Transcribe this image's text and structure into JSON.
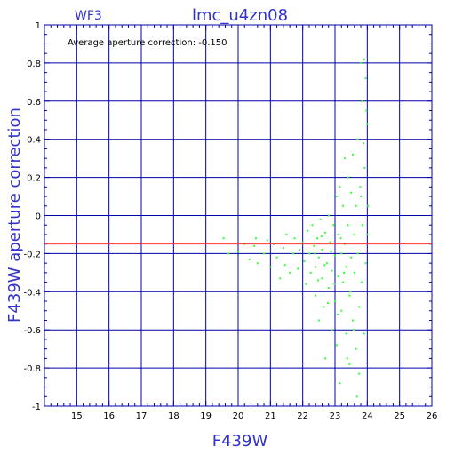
{
  "chart_data": {
    "type": "scatter",
    "title": "lmc_u4zn08",
    "subtitle": "WF3",
    "xlabel": "F439W",
    "ylabel": "F439W aperture correction",
    "annotation": "Average aperture correction:  -0.150",
    "xlim": [
      14,
      26
    ],
    "ylim": [
      -1,
      1
    ],
    "xticks": [
      "15",
      "16",
      "17",
      "18",
      "19",
      "20",
      "21",
      "22",
      "23",
      "24",
      "25",
      "26"
    ],
    "yticks": [
      "1",
      "0.8",
      "0.6",
      "0.4",
      "0.2",
      "0",
      "-0.2",
      "-0.4",
      "-0.6",
      "-0.8",
      "-1"
    ],
    "reference_line": {
      "y": -0.15,
      "color": "#ff3333"
    },
    "grid": true,
    "colors": {
      "axes": "#0000aa",
      "points": "#33ff33",
      "text": "#3333cc"
    },
    "points": [
      [
        19.55,
        -0.12
      ],
      [
        19.7,
        -0.2
      ],
      [
        20.0,
        -0.19
      ],
      [
        20.2,
        -0.15
      ],
      [
        20.35,
        -0.23
      ],
      [
        20.5,
        -0.16
      ],
      [
        20.55,
        -0.12
      ],
      [
        20.6,
        -0.25
      ],
      [
        20.8,
        -0.2
      ],
      [
        20.9,
        -0.13
      ],
      [
        21.0,
        -0.27
      ],
      [
        21.1,
        -0.15
      ],
      [
        21.2,
        -0.22
      ],
      [
        21.3,
        -0.33
      ],
      [
        21.4,
        -0.17
      ],
      [
        21.45,
        -0.26
      ],
      [
        21.5,
        -0.1
      ],
      [
        21.6,
        -0.3
      ],
      [
        21.7,
        -0.2
      ],
      [
        21.75,
        -0.12
      ],
      [
        21.85,
        -0.28
      ],
      [
        21.9,
        -0.18
      ],
      [
        22.0,
        -0.14
      ],
      [
        22.05,
        -0.24
      ],
      [
        22.1,
        -0.36
      ],
      [
        22.15,
        -0.08
      ],
      [
        22.2,
        -0.2
      ],
      [
        22.25,
        -0.3
      ],
      [
        22.3,
        -0.05
      ],
      [
        22.35,
        -0.16
      ],
      [
        22.4,
        -0.42
      ],
      [
        22.4,
        -0.27
      ],
      [
        22.45,
        -0.12
      ],
      [
        22.5,
        -0.22
      ],
      [
        22.5,
        -0.55
      ],
      [
        22.55,
        -0.02
      ],
      [
        22.6,
        -0.33
      ],
      [
        22.6,
        -0.18
      ],
      [
        22.65,
        -0.48
      ],
      [
        22.7,
        -0.75
      ],
      [
        22.7,
        -0.09
      ],
      [
        22.75,
        -0.25
      ],
      [
        22.8,
        0.0
      ],
      [
        22.8,
        -0.38
      ],
      [
        22.85,
        -0.14
      ],
      [
        22.9,
        -0.6
      ],
      [
        22.9,
        -0.29
      ],
      [
        22.95,
        -0.05
      ],
      [
        23.0,
        -0.21
      ],
      [
        23.0,
        -0.45
      ],
      [
        23.05,
        0.1
      ],
      [
        23.05,
        -0.68
      ],
      [
        23.1,
        -0.1
      ],
      [
        23.1,
        -0.32
      ],
      [
        23.15,
        0.15
      ],
      [
        23.15,
        -0.88
      ],
      [
        23.2,
        -0.2
      ],
      [
        23.2,
        -0.5
      ],
      [
        23.25,
        0.05
      ],
      [
        23.25,
        -0.35
      ],
      [
        23.3,
        0.3
      ],
      [
        23.3,
        -0.15
      ],
      [
        23.35,
        -0.62
      ],
      [
        23.35,
        -0.27
      ],
      [
        23.4,
        0.2
      ],
      [
        23.4,
        -0.05
      ],
      [
        23.45,
        -0.42
      ],
      [
        23.45,
        -0.78
      ],
      [
        23.5,
        0.12
      ],
      [
        23.5,
        -0.22
      ],
      [
        23.55,
        -0.55
      ],
      [
        23.55,
        0.32
      ],
      [
        23.6,
        -0.1
      ],
      [
        23.6,
        -0.3
      ],
      [
        23.65,
        -0.7
      ],
      [
        23.65,
        0.05
      ],
      [
        23.7,
        0.4
      ],
      [
        23.7,
        -0.2
      ],
      [
        23.75,
        -0.48
      ],
      [
        23.75,
        -0.83
      ],
      [
        23.8,
        0.8
      ],
      [
        23.8,
        0.1
      ],
      [
        23.82,
        -0.35
      ],
      [
        23.85,
        0.6
      ],
      [
        23.85,
        -0.05
      ],
      [
        23.9,
        0.82
      ],
      [
        23.9,
        -0.62
      ],
      [
        23.92,
        0.25
      ],
      [
        23.95,
        0.72
      ],
      [
        23.95,
        -0.25
      ],
      [
        23.97,
        0.55
      ],
      [
        24.0,
        0.48
      ],
      [
        24.0,
        -0.1
      ],
      [
        24.02,
        0.05
      ],
      [
        23.88,
        0.38
      ],
      [
        23.78,
        0.15
      ],
      [
        23.68,
        -0.95
      ],
      [
        23.58,
        -0.6
      ],
      [
        23.48,
        -0.4
      ],
      [
        23.38,
        -0.75
      ],
      [
        23.28,
        -0.3
      ],
      [
        23.18,
        -0.12
      ],
      [
        23.08,
        -0.52
      ],
      [
        22.98,
        -0.36
      ],
      [
        22.88,
        -0.19
      ],
      [
        22.78,
        -0.46
      ],
      [
        22.68,
        -0.26
      ],
      [
        22.58,
        -0.11
      ],
      [
        22.48,
        -0.34
      ],
      [
        22.38,
        -0.2
      ]
    ]
  }
}
